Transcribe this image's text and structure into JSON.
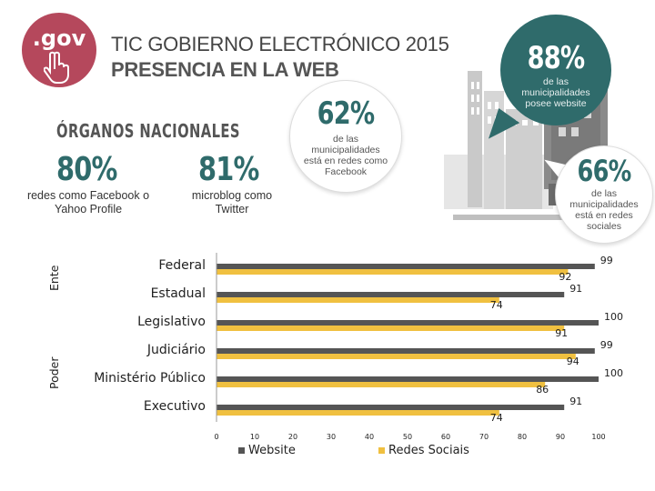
{
  "logo": {
    "text": ".gov"
  },
  "header": {
    "title_line1": "TIC GOBIERNO ELECTRÓNICO 2015",
    "title_line2": "PRESENCIA EN LA WEB"
  },
  "bubbles": {
    "b88": {
      "value": "88%",
      "text": "de las municipalidades posee website"
    },
    "b62": {
      "value": "62%",
      "text": "de las municipalidades está en redes como Facebook"
    },
    "b66": {
      "value": "66%",
      "text": "de las municipalidades está en redes sociales"
    }
  },
  "organos": {
    "title": "ÓRGANOS NACIONALES",
    "stat1": {
      "value": "80%",
      "text": "redes como Facebook o Yahoo Profile"
    },
    "stat2": {
      "value": "81%",
      "text": "microblog como Twitter"
    }
  },
  "colors": {
    "teal": "#2f6b6b",
    "website": "#555555",
    "redes": "#f0c040"
  },
  "chart_data": {
    "type": "bar",
    "orientation": "horizontal",
    "categories": [
      "Federal",
      "Estadual",
      "Legislativo",
      "Judiciário",
      "Ministério Público",
      "Executivo"
    ],
    "groups": [
      {
        "label": "Ente",
        "categories": [
          "Federal",
          "Estadual"
        ]
      },
      {
        "label": "Poder",
        "categories": [
          "Legislativo",
          "Judiciário",
          "Ministério Público",
          "Executivo"
        ]
      }
    ],
    "series": [
      {
        "name": "Website",
        "values": [
          99,
          91,
          100,
          99,
          100,
          91
        ]
      },
      {
        "name": "Redes Sociais",
        "values": [
          92,
          74,
          91,
          94,
          86,
          74
        ]
      }
    ],
    "xlim": [
      0,
      100
    ],
    "xticks": [
      0,
      10,
      20,
      30,
      40,
      50,
      60,
      70,
      80,
      90,
      100
    ]
  }
}
